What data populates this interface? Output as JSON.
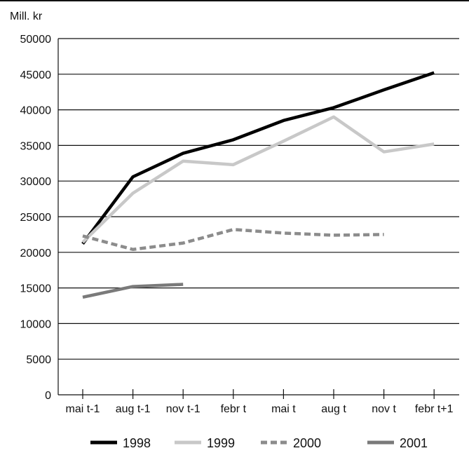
{
  "chart_data": {
    "type": "line",
    "ylabel": "Mill. kr",
    "categories": [
      "mai t-1",
      "aug t-1",
      "nov t-1",
      "febr t",
      "mai t",
      "aug t",
      "nov t",
      "febr t+1"
    ],
    "yticks": [
      0,
      5000,
      10000,
      15000,
      20000,
      25000,
      30000,
      35000,
      40000,
      45000,
      50000
    ],
    "ylim": [
      0,
      50000
    ],
    "grid": true,
    "legend_position": "bottom",
    "series": [
      {
        "name": "1998",
        "color": "#000000",
        "dash": "solid",
        "values": [
          21200,
          30600,
          33900,
          35800,
          38500,
          40300,
          42800,
          45200
        ]
      },
      {
        "name": "1999",
        "color": "#c8c8c8",
        "dash": "solid",
        "values": [
          21400,
          28300,
          32800,
          32300,
          35600,
          39000,
          34100,
          35200
        ]
      },
      {
        "name": "2000",
        "color": "#8c8c8c",
        "dash": "dashed",
        "values": [
          22300,
          20400,
          21300,
          23200,
          22700,
          22400,
          22500,
          null
        ]
      },
      {
        "name": "2001",
        "color": "#7a7a7a",
        "dash": "solid",
        "values": [
          13700,
          15200,
          15500,
          null,
          null,
          null,
          null,
          null
        ]
      }
    ]
  }
}
